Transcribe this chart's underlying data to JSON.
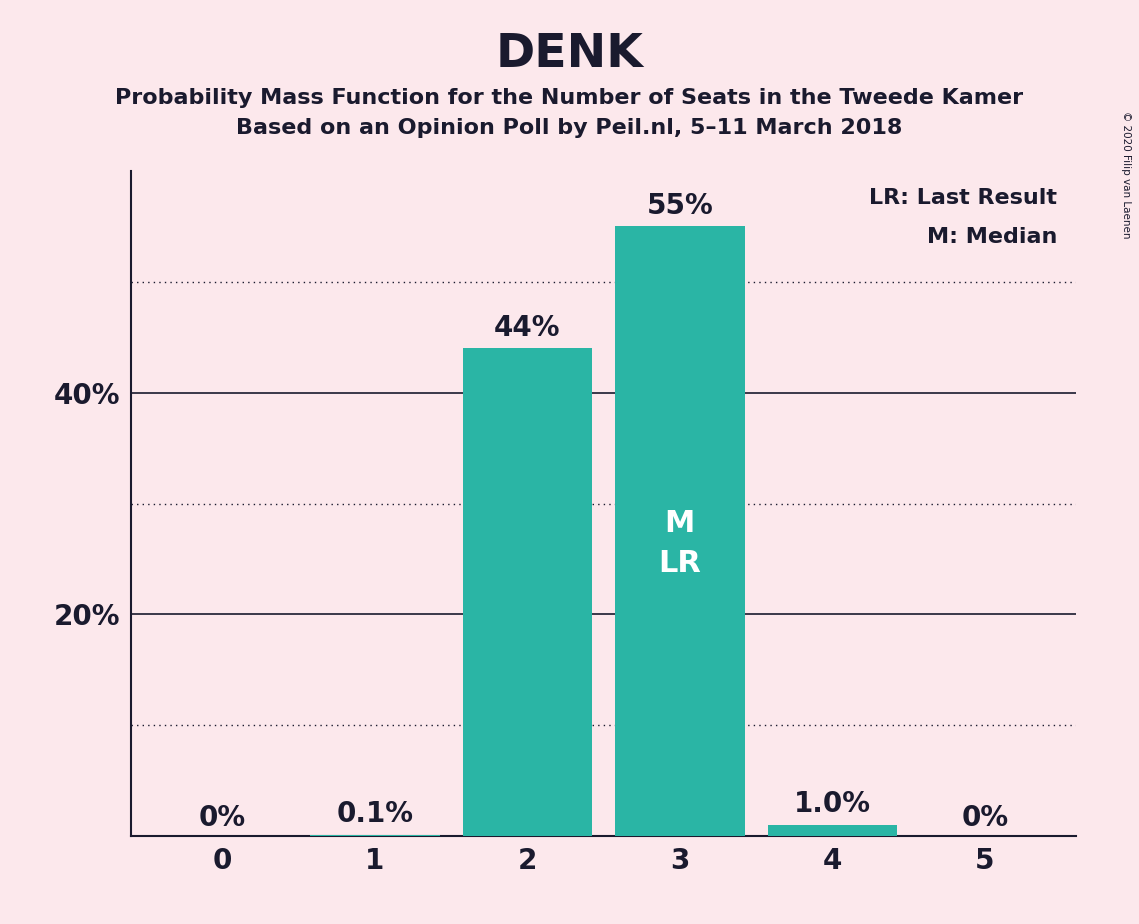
{
  "categories": [
    0,
    1,
    2,
    3,
    4,
    5
  ],
  "values": [
    0.0,
    0.001,
    0.44,
    0.55,
    0.01,
    0.0
  ],
  "bar_labels": [
    "0%",
    "0.1%",
    "44%",
    "55%",
    "1.0%",
    "0%"
  ],
  "bar_color": "#2ab5a5",
  "background_color": "#fce8ec",
  "title": "DENK",
  "subtitle1": "Probability Mass Function for the Number of Seats in the Tweede Kamer",
  "subtitle2": "Based on an Opinion Poll by Peil.nl, 5–11 March 2018",
  "legend_lr": "LR: Last Result",
  "legend_m": "M: Median",
  "copyright": "© 2020 Filip van Laenen",
  "ylim": [
    0,
    0.6
  ],
  "yticks": [
    0.0,
    0.1,
    0.2,
    0.3,
    0.4,
    0.5
  ],
  "ytick_labels_solid": [
    0.2,
    0.4
  ],
  "ytick_labels_dotted": [
    0.1,
    0.3,
    0.5
  ],
  "text_color": "#1a1a2e",
  "title_fontsize": 34,
  "subtitle_fontsize": 16,
  "bar_label_fontsize": 20,
  "axis_tick_fontsize": 20,
  "legend_fontsize": 16
}
